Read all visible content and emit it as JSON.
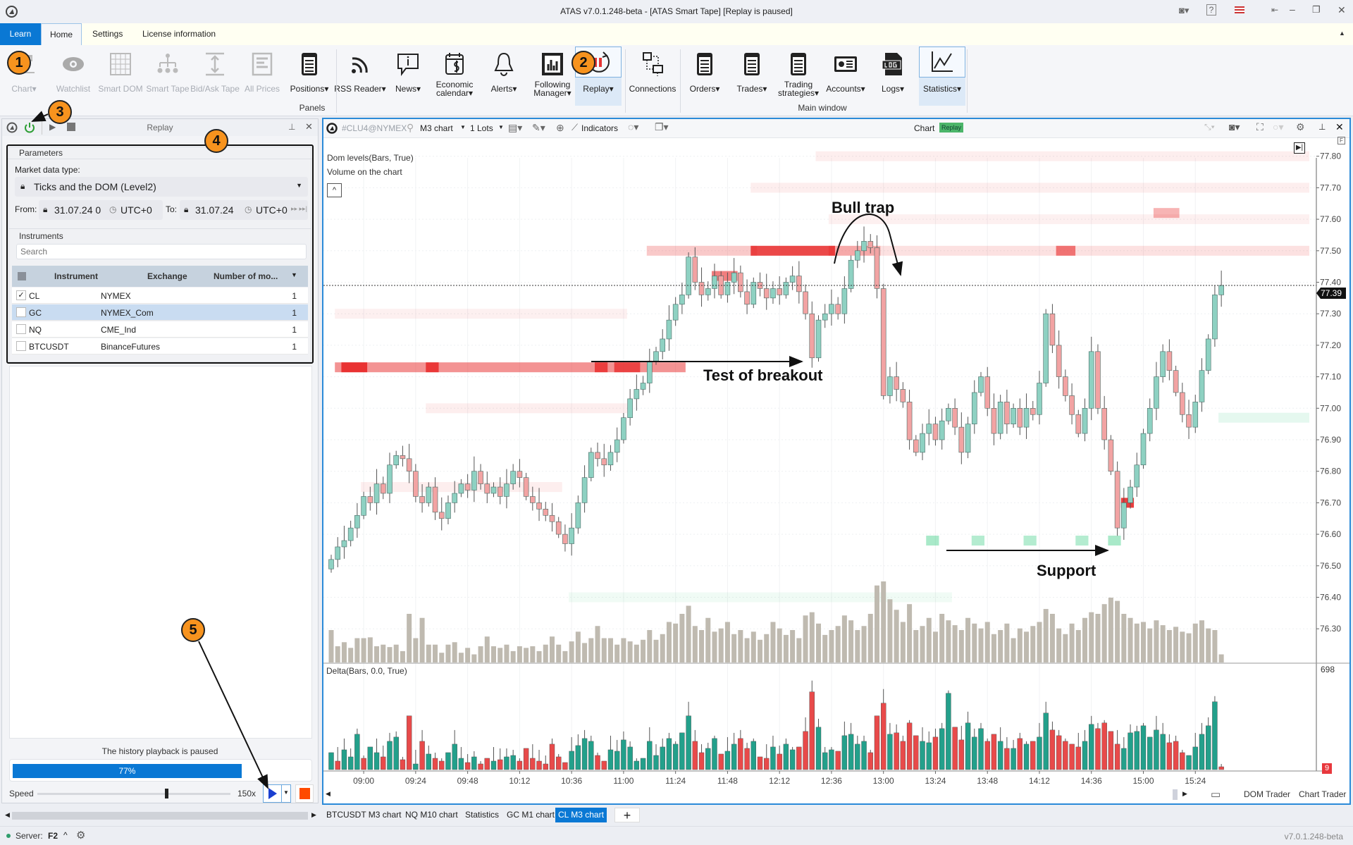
{
  "window": {
    "title": "ATAS v7.0.1.248-beta - [ATAS Smart Tape] [Replay is paused]"
  },
  "menu_tabs": [
    {
      "label": "Learn"
    },
    {
      "label": "Home"
    },
    {
      "label": "Settings"
    },
    {
      "label": "License information"
    }
  ],
  "ribbon": {
    "buttons": [
      {
        "label": "Chart▾",
        "icon": "chart-icon",
        "disabled": true
      },
      {
        "label": "Watchlist",
        "icon": "eye-icon",
        "disabled": true
      },
      {
        "label": "Smart DOM",
        "icon": "grid-icon",
        "disabled": true
      },
      {
        "label": "Smart Tape",
        "icon": "hierarchy-icon",
        "disabled": true
      },
      {
        "label": "Bid/Ask Tape",
        "icon": "vertical-arrows-icon",
        "disabled": true
      },
      {
        "label": "All Prices",
        "icon": "list-icon",
        "disabled": true
      },
      {
        "label": "Positions▾",
        "icon": "document-icon"
      },
      {
        "label": "RSS Reader▾",
        "icon": "rss-icon"
      },
      {
        "label": "News▾",
        "icon": "speech-info-icon"
      },
      {
        "label": "Economic calendar▾",
        "icon": "calendar-dollar-icon"
      },
      {
        "label": "Alerts▾",
        "icon": "bell-icon"
      },
      {
        "label": "Following Manager▾",
        "icon": "bar-chart-icon"
      },
      {
        "label": "Replay▾",
        "icon": "replay-icon",
        "highlighted": true
      },
      {
        "label": "Connections",
        "icon": "network-icon"
      },
      {
        "label": "Orders▾",
        "icon": "document-icon"
      },
      {
        "label": "Trades▾",
        "icon": "document-icon"
      },
      {
        "label": "Trading strategies▾",
        "icon": "document-icon"
      },
      {
        "label": "Accounts▾",
        "icon": "account-card-icon"
      },
      {
        "label": "Logs▾",
        "icon": "log-icon"
      },
      {
        "label": "Statistics▾",
        "icon": "line-chart-icon",
        "highlighted": true
      }
    ],
    "groups": [
      {
        "label": "Panels"
      },
      {
        "label": "Main window"
      }
    ]
  },
  "replay_panel": {
    "title": "Replay",
    "parameters_label": "Parameters",
    "market_data_label": "Market data type:",
    "market_data_value": "Ticks and the DOM (Level2)",
    "from_label": "From:",
    "from_value": "31.07.24 0",
    "from_tz": "UTC+0",
    "to_label": "To:",
    "to_value": "31.07.24",
    "to_tz": "UTC+0",
    "instruments_label": "Instruments",
    "search_placeholder": "Search",
    "columns": [
      "Instrument",
      "Exchange",
      "Number of mo..."
    ],
    "rows": [
      {
        "instrument": "CL",
        "exchange": "NYMEX",
        "count": "1",
        "checked": true
      },
      {
        "instrument": "GC",
        "exchange": "NYMEX_Com",
        "count": "1",
        "checked": false,
        "selected": true
      },
      {
        "instrument": "NQ",
        "exchange": "CME_Ind",
        "count": "1",
        "checked": false
      },
      {
        "instrument": "BTCUSDT",
        "exchange": "BinanceFutures",
        "count": "1",
        "checked": false
      }
    ],
    "status": "The history playback is paused",
    "progress": 77,
    "progress_label": "77%",
    "speed_label": "Speed",
    "speed_value": "150x",
    "speed_fraction": 0.66
  },
  "markers": [
    "1",
    "2",
    "3",
    "4",
    "5"
  ],
  "chart": {
    "symbol": "#CLU4@NYMEX",
    "timeframe": "M3 chart",
    "lots": "1 Lots",
    "indicators_label": "Indicators",
    "title": "Chart",
    "badge": "Replay",
    "indicator_legend": [
      "Dom levels(Bars, True)",
      "Volume on the chart"
    ],
    "delta_legend": "Delta(Bars, 0.0, True)",
    "delta_max_label": "698",
    "delta_badge": "9",
    "last_price": "77.39",
    "annotations": {
      "bull_trap": "Bull trap",
      "test_breakout": "Test of breakout",
      "support": "Support"
    },
    "dom_trader": "DOM Trader",
    "chart_trader": "Chart Trader"
  },
  "chart_data": {
    "type": "candlestick",
    "timeframe_minutes": 3,
    "start_time": "08:45",
    "ylim": [
      76.25,
      77.85
    ],
    "y_ticks": [
      "77.80",
      "77.70",
      "77.60",
      "77.50",
      "77.40",
      "77.30",
      "77.20",
      "77.10",
      "77.00",
      "76.90",
      "76.80",
      "76.70",
      "76.60",
      "76.50",
      "76.40",
      "76.30"
    ],
    "x_ticks": [
      "09:00",
      "09:24",
      "09:48",
      "10:12",
      "10:36",
      "11:00",
      "11:24",
      "11:48",
      "12:12",
      "12:36",
      "13:00",
      "13:24",
      "13:48",
      "14:12",
      "14:36",
      "15:00",
      "15:24"
    ],
    "last_price": 77.39,
    "closes": [
      76.52,
      76.56,
      76.58,
      76.62,
      76.66,
      76.72,
      76.7,
      76.76,
      76.73,
      76.82,
      76.85,
      76.84,
      76.8,
      76.72,
      76.7,
      76.75,
      76.67,
      76.65,
      76.7,
      76.73,
      76.76,
      76.74,
      76.8,
      76.76,
      76.73,
      76.75,
      76.72,
      76.76,
      76.8,
      76.78,
      76.72,
      76.7,
      76.68,
      76.66,
      76.64,
      76.6,
      76.57,
      76.62,
      76.7,
      76.78,
      76.86,
      76.84,
      76.82,
      76.86,
      76.9,
      76.97,
      77.03,
      77.06,
      77.08,
      77.15,
      77.18,
      77.22,
      77.28,
      77.33,
      77.36,
      77.48,
      77.4,
      77.36,
      77.38,
      77.42,
      77.36,
      77.4,
      77.43,
      77.37,
      77.33,
      77.4,
      77.38,
      77.35,
      77.38,
      77.36,
      77.4,
      77.42,
      77.37,
      77.3,
      77.16,
      77.28,
      77.3,
      77.33,
      77.3,
      77.38,
      77.47,
      77.5,
      77.53,
      77.51,
      77.38,
      77.04,
      77.1,
      77.06,
      77.02,
      76.9,
      76.86,
      76.92,
      76.95,
      76.9,
      76.96,
      77.0,
      76.94,
      76.86,
      76.95,
      77.05,
      77.1,
      77.0,
      76.92,
      77.02,
      76.95,
      77.0,
      76.94,
      77.0,
      76.98,
      77.08,
      77.3,
      77.2,
      77.1,
      77.04,
      76.98,
      76.92,
      77.0,
      77.18,
      77.0,
      76.9,
      76.8,
      76.62,
      76.7,
      76.75,
      76.82,
      76.92,
      77.0,
      77.1,
      77.18,
      77.12,
      77.05,
      76.98,
      76.94,
      77.02,
      77.12,
      77.22,
      77.36,
      77.39
    ],
    "volume": [
      40,
      20,
      25,
      18,
      30,
      30,
      31,
      20,
      22,
      19,
      22,
      14,
      60,
      30,
      55,
      22,
      22,
      12,
      22,
      25,
      12,
      18,
      10,
      20,
      32,
      20,
      18,
      22,
      14,
      20,
      18,
      20,
      14,
      22,
      32,
      22,
      14,
      26,
      38,
      24,
      30,
      45,
      30,
      30,
      22,
      30,
      26,
      22,
      28,
      40,
      28,
      35,
      50,
      48,
      60,
      70,
      45,
      40,
      55,
      38,
      42,
      50,
      35,
      40,
      30,
      38,
      28,
      35,
      50,
      42,
      34,
      40,
      30,
      58,
      62,
      48,
      34,
      40,
      45,
      58,
      52,
      40,
      45,
      60,
      95,
      100,
      78,
      65,
      50,
      72,
      40,
      45,
      55,
      38,
      60,
      52,
      46,
      40,
      55,
      48,
      42,
      50,
      35,
      40,
      48,
      30,
      42,
      38,
      45,
      50,
      66,
      60,
      42,
      35,
      48,
      40,
      55,
      62,
      60,
      72,
      80,
      76,
      60,
      55,
      48,
      50,
      42,
      52,
      46,
      40,
      44,
      38,
      36,
      48,
      52,
      42,
      40,
      10
    ],
    "delta": [
      120,
      -60,
      140,
      90,
      250,
      -80,
      160,
      120,
      -90,
      200,
      230,
      -70,
      -380,
      40,
      -200,
      110,
      -80,
      -60,
      120,
      180,
      80,
      -50,
      90,
      -40,
      -80,
      60,
      -70,
      90,
      100,
      -60,
      -150,
      -80,
      -60,
      -40,
      -180,
      -90,
      -50,
      130,
      170,
      220,
      200,
      -100,
      -60,
      140,
      130,
      210,
      160,
      60,
      80,
      200,
      100,
      160,
      220,
      180,
      260,
      380,
      -200,
      -120,
      150,
      220,
      -110,
      130,
      180,
      -220,
      -150,
      200,
      -90,
      -80,
      160,
      -110,
      180,
      140,
      -160,
      -270,
      -550,
      300,
      120,
      140,
      -130,
      240,
      250,
      180,
      200,
      -120,
      -380,
      -470,
      250,
      -260,
      -200,
      -330,
      -240,
      200,
      190,
      -230,
      290,
      540,
      -300,
      -210,
      330,
      230,
      290,
      -200,
      -250,
      200,
      -150,
      150,
      -220,
      180,
      -200,
      230,
      400,
      -280,
      -240,
      -200,
      -180,
      -160,
      200,
      320,
      -290,
      -330,
      -270,
      -180,
      150,
      260,
      270,
      310,
      230,
      280,
      250,
      -190,
      -200,
      -120,
      100,
      160,
      250,
      310,
      480,
      -20
    ],
    "delta_max": 698,
    "dom_levels": [
      {
        "side": "ask",
        "price": 77.13,
        "from": "08:48",
        "to": "11:27",
        "intensity": 0.5
      },
      {
        "side": "ask",
        "price": 77.13,
        "from": "08:51",
        "to": "09:00",
        "intensity": 0.9
      },
      {
        "side": "ask",
        "price": 77.13,
        "from": "09:30",
        "to": "09:33",
        "intensity": 0.85
      },
      {
        "side": "ask",
        "price": 77.13,
        "from": "10:48",
        "to": "10:51",
        "intensity": 0.8
      },
      {
        "side": "ask",
        "price": 77.13,
        "from": "10:57",
        "to": "11:06",
        "intensity": 0.75
      },
      {
        "side": "ask",
        "price": 77.5,
        "from": "11:12",
        "to": "12:00",
        "intensity": 0.25
      },
      {
        "side": "ask",
        "price": 77.5,
        "from": "12:00",
        "to": "12:36",
        "intensity": 0.85
      },
      {
        "side": "ask",
        "price": 77.5,
        "from": "12:36",
        "to": "12:57",
        "intensity": 0.4
      },
      {
        "side": "ask",
        "price": 77.5,
        "from": "13:00",
        "to": "16:15",
        "intensity": 0.14
      },
      {
        "side": "ask",
        "price": 77.5,
        "from": "14:21",
        "to": "14:27",
        "intensity": 0.6
      },
      {
        "side": "ask",
        "price": 77.42,
        "from": "11:42",
        "to": "11:51",
        "intensity": 0.6
      },
      {
        "side": "ask",
        "price": 77.62,
        "from": "15:06",
        "to": "15:15",
        "intensity": 0.35
      },
      {
        "side": "ask",
        "price": 77.6,
        "from": "12:36",
        "to": "16:15",
        "intensity": 0.07
      },
      {
        "side": "ask",
        "price": 77.7,
        "from": "12:00",
        "to": "16:15",
        "intensity": 0.08
      },
      {
        "side": "ask",
        "price": 77.8,
        "from": "12:30",
        "to": "16:15",
        "intensity": 0.08
      },
      {
        "side": "ask",
        "price": 77.3,
        "from": "08:48",
        "to": "11:00",
        "intensity": 0.07
      },
      {
        "side": "ask",
        "price": 77.0,
        "from": "09:30",
        "to": "11:00",
        "intensity": 0.08
      },
      {
        "side": "ask",
        "price": 76.75,
        "from": "09:00",
        "to": "10:30",
        "intensity": 0.08
      },
      {
        "side": "ask",
        "price": 76.7,
        "from": "14:51",
        "to": "14:54",
        "intensity": 0.9
      },
      {
        "side": "bid",
        "price": 76.58,
        "from": "13:21",
        "to": "13:24",
        "intensity": 0.4
      },
      {
        "side": "bid",
        "price": 76.58,
        "from": "13:42",
        "to": "13:45",
        "intensity": 0.35
      },
      {
        "side": "bid",
        "price": 76.58,
        "from": "14:06",
        "to": "14:09",
        "intensity": 0.35
      },
      {
        "side": "bid",
        "price": 76.58,
        "from": "14:30",
        "to": "14:33",
        "intensity": 0.35
      },
      {
        "side": "bid",
        "price": 76.58,
        "from": "14:45",
        "to": "14:48",
        "intensity": 0.4
      },
      {
        "side": "bid",
        "price": 76.97,
        "from": "15:36",
        "to": "16:15",
        "intensity": 0.12
      },
      {
        "side": "bid",
        "price": 76.4,
        "from": "10:36",
        "to": "13:30",
        "intensity": 0.07
      }
    ],
    "colors": {
      "bull": "#8ed1c2",
      "bear": "#f2a3a3",
      "delta_pos": "#23a08b",
      "delta_neg": "#e84a4a",
      "volume": "#bfbab0",
      "ask": "#e82828",
      "bid": "#28c878"
    }
  },
  "chart_tabs": [
    {
      "label": "BTCUSDT M3 chart"
    },
    {
      "label": "NQ M10 chart"
    },
    {
      "label": "Statistics"
    },
    {
      "label": "GC M1 chart"
    },
    {
      "label": "CL M3 chart",
      "active": true
    }
  ],
  "statusbar": {
    "server_label": "Server:",
    "server_value": "F2",
    "version": "v7.0.1.248-beta"
  }
}
